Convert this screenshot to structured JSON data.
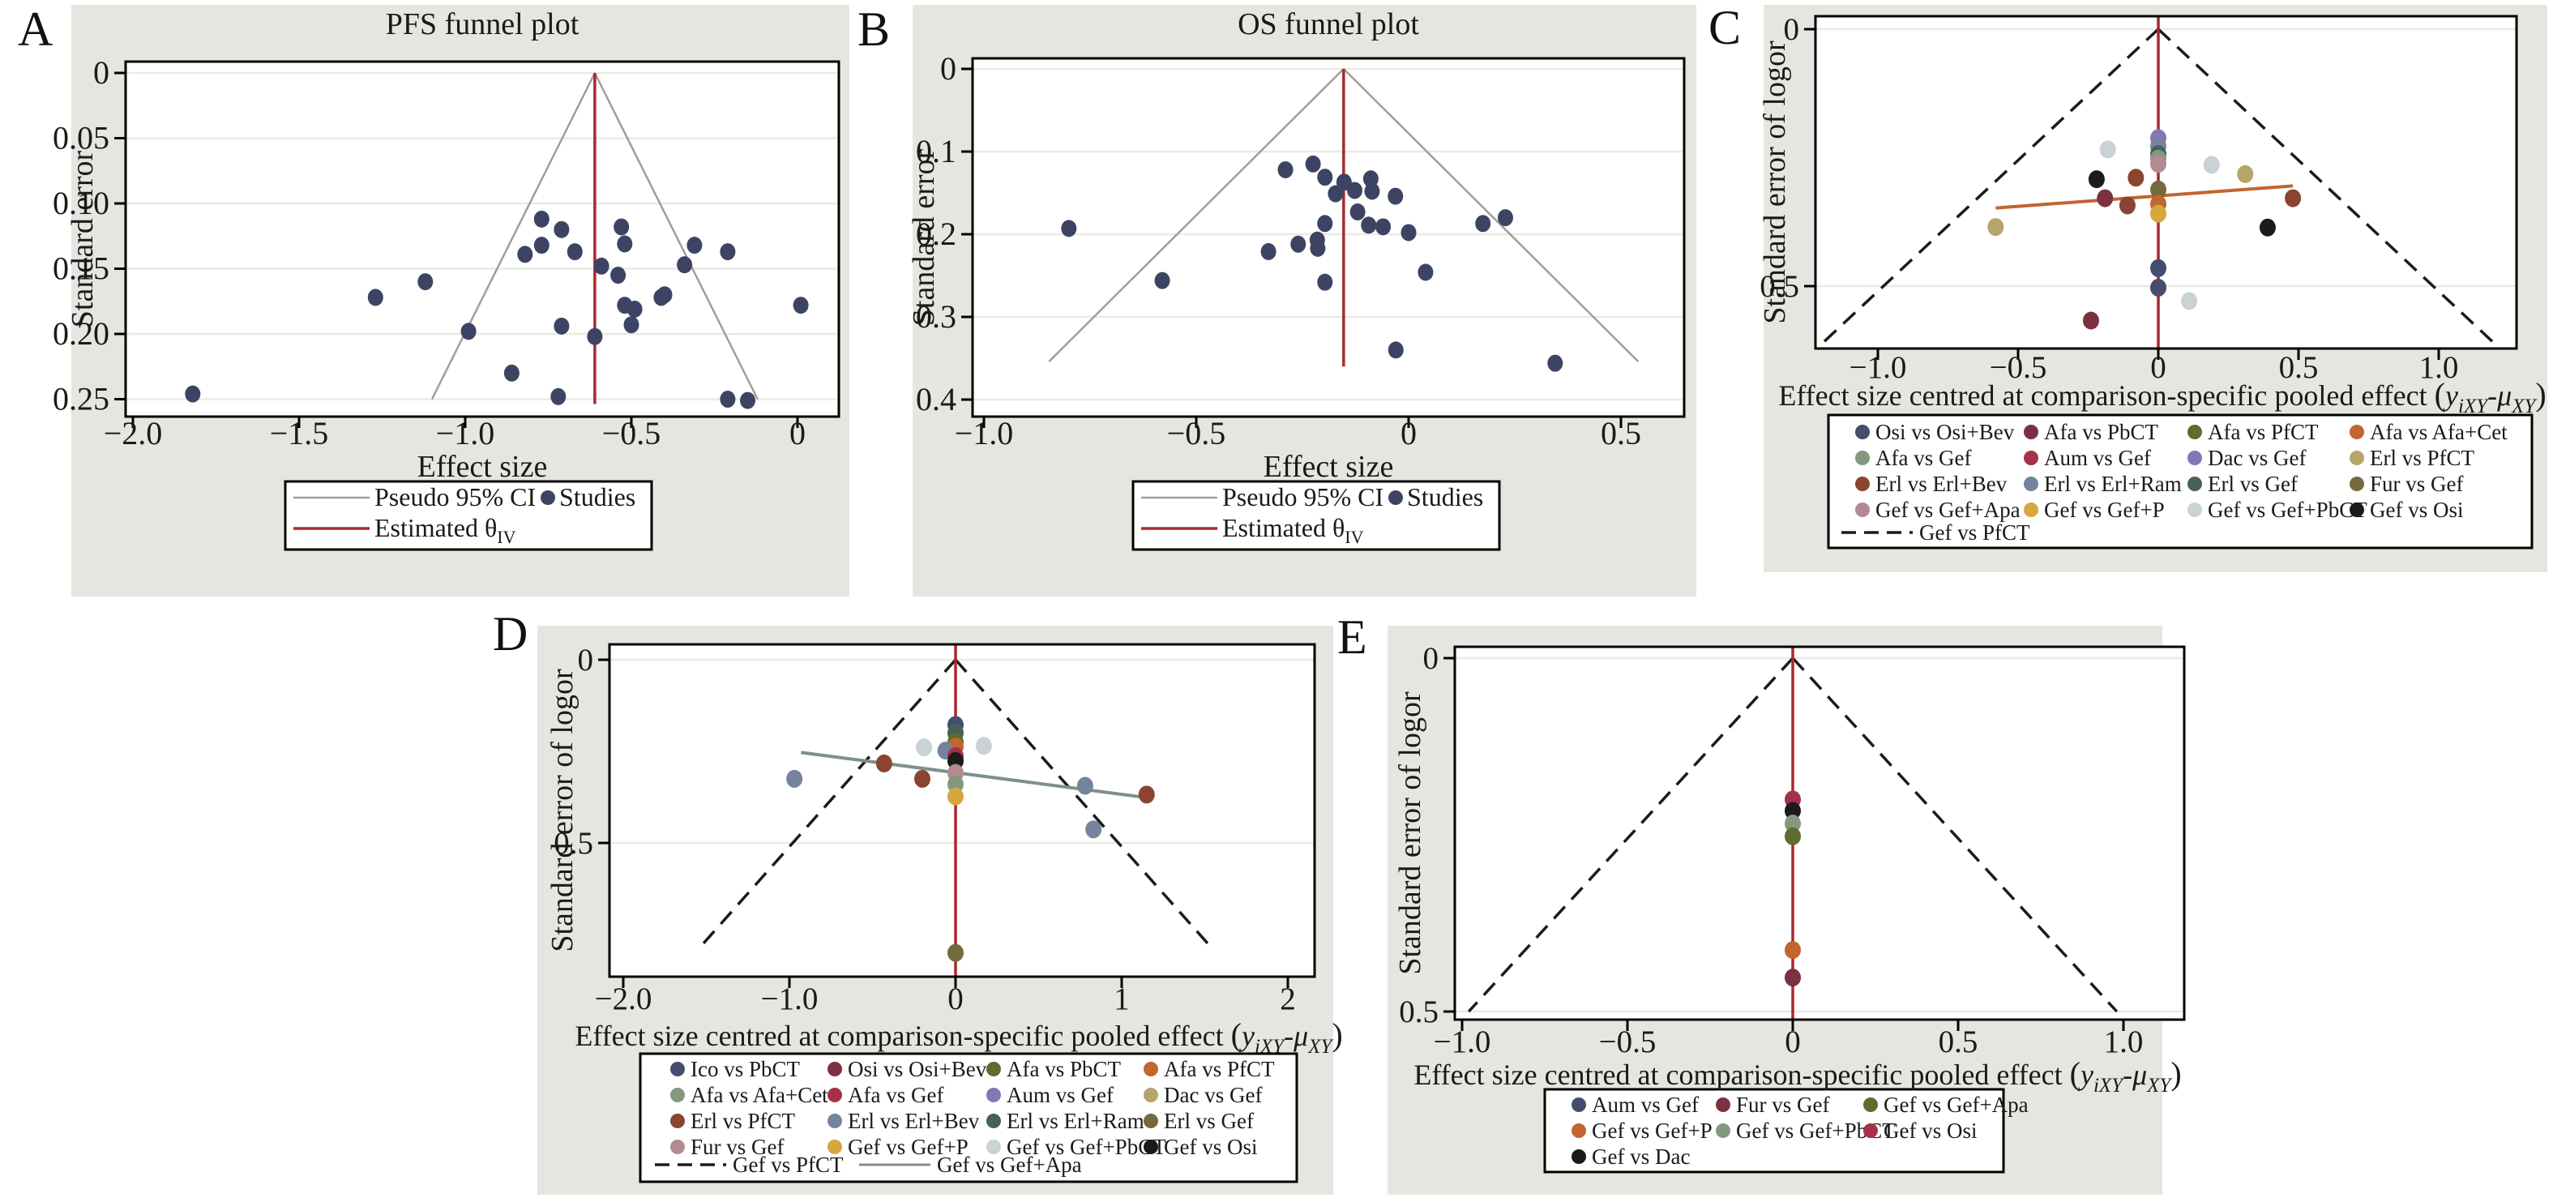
{
  "figure": {
    "background": "#ffffff",
    "panel_background": "#e4e7e0",
    "plot_background": "#ffffff",
    "gridline_color": "#e9ebe7",
    "frame_color": "#000000"
  },
  "palette": {
    "studies_navy": "#3d4463",
    "funnel_gray": "#a59b9b",
    "red": "#a8292d",
    "orange_line": "#c2652f",
    "gray_line": "#7f8f8a",
    "navy": "#454c6e",
    "maroon": "#7b3140",
    "olive": "#5f6b2f",
    "burntorange": "#c2652f",
    "sage": "#83987f",
    "crimson": "#a43148",
    "purple": "#8377b5",
    "khaki": "#b5a56b",
    "brick": "#8a4430",
    "grayblue": "#75849c",
    "darkteal": "#486158",
    "darkolive": "#756a3d",
    "mauve": "#b18a92",
    "gold": "#d5a73c",
    "lightgray": "#c9d2d4",
    "black": "#1b1b1b"
  },
  "panels": [
    {
      "label": "A"
    },
    {
      "label": "B"
    },
    {
      "label": "C"
    },
    {
      "label": "D"
    },
    {
      "label": "E"
    }
  ],
  "chart_data": [
    {
      "id": "A",
      "type": "scatter",
      "title": "PFS funnel plot",
      "xlabel": "Effect size",
      "ylabel": "Standard error",
      "x_ticks": [
        -2.0,
        -1.5,
        -1.0,
        -0.5,
        0
      ],
      "x_tick_labels": [
        "−2.0",
        "−1.5",
        "−1.0",
        "−0.5",
        "0"
      ],
      "y_ticks": [
        0,
        0.05,
        0.1,
        0.15,
        0.2,
        0.25
      ],
      "y_tick_labels": [
        "0",
        "0.05",
        "0.10",
        "0.15",
        "0.20",
        "0.25"
      ],
      "xlim": [
        -2.15,
        0.12
      ],
      "ylim": [
        0,
        0.26
      ],
      "pooled_effect": -0.61,
      "funnel": {
        "center": -0.61,
        "slope": 1.96,
        "se_end": 0.25,
        "style": "solid",
        "color_key": "funnel_gray"
      },
      "points_color_key": "studies_navy",
      "points": [
        [
          -1.82,
          0.246
        ],
        [
          -1.27,
          0.172
        ],
        [
          -1.12,
          0.16
        ],
        [
          -0.99,
          0.198
        ],
        [
          -0.86,
          0.23
        ],
        [
          -0.82,
          0.139
        ],
        [
          -0.77,
          0.112
        ],
        [
          -0.77,
          0.132
        ],
        [
          -0.72,
          0.248
        ],
        [
          -0.71,
          0.12
        ],
        [
          -0.71,
          0.194
        ],
        [
          -0.67,
          0.137
        ],
        [
          -0.61,
          0.202
        ],
        [
          -0.59,
          0.148
        ],
        [
          -0.54,
          0.155
        ],
        [
          -0.53,
          0.118
        ],
        [
          -0.52,
          0.131
        ],
        [
          -0.52,
          0.178
        ],
        [
          -0.5,
          0.193
        ],
        [
          -0.49,
          0.181
        ],
        [
          -0.41,
          0.172
        ],
        [
          -0.4,
          0.17
        ],
        [
          -0.34,
          0.147
        ],
        [
          -0.31,
          0.132
        ],
        [
          -0.21,
          0.137
        ],
        [
          -0.21,
          0.25
        ],
        [
          -0.15,
          0.251
        ],
        [
          0.01,
          0.178
        ]
      ],
      "legend_ab": {
        "ci_label": "Pseudo 95% CI",
        "studies_label": "Studies",
        "estimate_label": "Estimated θ",
        "estimate_sub": "IV"
      }
    },
    {
      "id": "B",
      "type": "scatter",
      "title": "OS funnel plot",
      "xlabel": "Effect size",
      "ylabel": "Standard error",
      "x_ticks": [
        -1.0,
        -0.5,
        0,
        0.5
      ],
      "x_tick_labels": [
        "−1.0",
        "−0.5",
        "0",
        "0.5"
      ],
      "y_ticks": [
        0,
        0.1,
        0.2,
        0.3,
        0.4
      ],
      "y_tick_labels": [
        "0",
        "0.1",
        "0.2",
        "0.3",
        "0.4"
      ],
      "xlim": [
        -1.05,
        0.58
      ],
      "ylim": [
        0,
        0.42
      ],
      "pooled_effect": -0.153,
      "funnel": {
        "center": -0.153,
        "slope": 1.96,
        "se_end": 0.354,
        "style": "solid",
        "color_key": "funnel_gray"
      },
      "points_color_key": "studies_navy",
      "points": [
        [
          -0.8,
          0.193
        ],
        [
          -0.58,
          0.256
        ],
        [
          -0.33,
          0.221
        ],
        [
          -0.29,
          0.122
        ],
        [
          -0.26,
          0.212
        ],
        [
          -0.225,
          0.115
        ],
        [
          -0.215,
          0.207
        ],
        [
          -0.214,
          0.217
        ],
        [
          -0.197,
          0.131
        ],
        [
          -0.197,
          0.187
        ],
        [
          -0.197,
          0.258
        ],
        [
          -0.172,
          0.151
        ],
        [
          -0.152,
          0.137
        ],
        [
          -0.127,
          0.147
        ],
        [
          -0.12,
          0.173
        ],
        [
          -0.089,
          0.133
        ],
        [
          -0.086,
          0.148
        ],
        [
          -0.094,
          0.189
        ],
        [
          -0.06,
          0.191
        ],
        [
          -0.031,
          0.154
        ],
        [
          0.0,
          0.198
        ],
        [
          -0.03,
          0.34
        ],
        [
          0.04,
          0.246
        ],
        [
          0.175,
          0.187
        ],
        [
          0.228,
          0.18
        ],
        [
          0.345,
          0.356
        ]
      ],
      "legend_ab": {
        "ci_label": "Pseudo 95% CI",
        "studies_label": "Studies",
        "estimate_label": "Estimated θ",
        "estimate_sub": "IV"
      }
    },
    {
      "id": "C",
      "type": "scatter",
      "title": "",
      "xlabel": "Effect size centred at comparison-specific pooled effect",
      "formula": {
        "pre": "(",
        "var1": "y",
        "sub1": "iXY",
        "op": "-",
        "var2": "μ",
        "sub2": "XY",
        "post": ")"
      },
      "ylabel": "Standard error of logor",
      "x_ticks": [
        -1.0,
        -0.5,
        0,
        0.5,
        1.0
      ],
      "x_tick_labels": [
        "−1.0",
        "−0.5",
        "0",
        "0.5",
        "1.0"
      ],
      "y_ticks": [
        0,
        0.5
      ],
      "y_tick_labels": [
        "0",
        "0.5"
      ],
      "xlim": [
        -1.22,
        1.28
      ],
      "ylim": [
        0,
        0.62
      ],
      "pooled_effect": 0,
      "funnel": {
        "center": 0,
        "slope": 1.96,
        "se_end": 0.615,
        "style": "dashed",
        "color_key": "black"
      },
      "reg_line": {
        "x1": -0.58,
        "se1": 0.348,
        "x2": 0.48,
        "se2": 0.305,
        "color_key": "orange_line"
      },
      "points": [
        [
          0,
          0.212,
          "purple"
        ],
        [
          0,
          0.228,
          "grayblue"
        ],
        [
          -0.18,
          0.234,
          "lightgray"
        ],
        [
          0,
          0.243,
          "darkteal"
        ],
        [
          0,
          0.252,
          "sage"
        ],
        [
          0,
          0.262,
          "mauve"
        ],
        [
          0.19,
          0.264,
          "lightgray"
        ],
        [
          0.31,
          0.282,
          "khaki"
        ],
        [
          -0.08,
          0.289,
          "brick"
        ],
        [
          -0.22,
          0.292,
          "black"
        ],
        [
          0,
          0.312,
          "darkolive"
        ],
        [
          -0.19,
          0.329,
          "maroon"
        ],
        [
          0,
          0.34,
          "burntorange"
        ],
        [
          -0.11,
          0.343,
          "brick"
        ],
        [
          0.48,
          0.329,
          "brick"
        ],
        [
          0,
          0.359,
          "gold"
        ],
        [
          -0.58,
          0.385,
          "khaki"
        ],
        [
          0.39,
          0.386,
          "black"
        ],
        [
          0,
          0.465,
          "navy"
        ],
        [
          0,
          0.503,
          "navy"
        ],
        [
          0.11,
          0.529,
          "lightgray"
        ],
        [
          -0.24,
          0.567,
          "maroon"
        ]
      ],
      "legend_grid": {
        "columns": 4,
        "items": [
          {
            "ck": "navy",
            "label": "Osi vs Osi+Bev"
          },
          {
            "ck": "maroon",
            "label": "Afa vs PbCT"
          },
          {
            "ck": "olive",
            "label": "Afa vs PfCT"
          },
          {
            "ck": "burntorange",
            "label": "Afa vs Afa+Cet"
          },
          {
            "ck": "sage",
            "label": "Afa vs Gef"
          },
          {
            "ck": "crimson",
            "label": "Aum vs Gef"
          },
          {
            "ck": "purple",
            "label": "Dac vs Gef"
          },
          {
            "ck": "khaki",
            "label": "Erl vs PfCT"
          },
          {
            "ck": "brick",
            "label": "Erl vs Erl+Bev"
          },
          {
            "ck": "grayblue",
            "label": "Erl vs Erl+Ram"
          },
          {
            "ck": "darkteal",
            "label": "Erl vs Gef"
          },
          {
            "ck": "darkolive",
            "label": "Fur vs Gef"
          },
          {
            "ck": "mauve",
            "label": "Gef vs Gef+Apa"
          },
          {
            "ck": "gold",
            "label": "Gef vs Gef+P"
          },
          {
            "ck": "lightgray",
            "label": "Gef vs Gef+PbCT"
          },
          {
            "ck": "black",
            "label": "Gef vs Osi"
          }
        ],
        "extra": [
          {
            "sw": "dash",
            "ck": "black",
            "label": "Gef vs PfCT"
          }
        ]
      }
    },
    {
      "id": "D",
      "type": "scatter",
      "title": "",
      "xlabel": "Effect size centred at comparison-specific pooled effect",
      "formula": {
        "pre": "(",
        "var1": "y",
        "sub1": "iXY",
        "op": "-",
        "var2": "μ",
        "sub2": "XY",
        "post": ")"
      },
      "ylabel": "Standard error of logor",
      "x_ticks": [
        -2.0,
        -1.0,
        0,
        1,
        2
      ],
      "x_tick_labels": [
        "−2.0",
        "−1.0",
        "0",
        "1",
        "2"
      ],
      "y_ticks": [
        0,
        0.5
      ],
      "y_tick_labels": [
        "0",
        "0.5"
      ],
      "xlim": [
        -2.1,
        2.16
      ],
      "ylim": [
        0,
        0.865
      ],
      "pooled_effect": 0,
      "funnel": {
        "center": 0,
        "slope": 1.96,
        "se_end": 0.78,
        "style": "dashed",
        "color_key": "black"
      },
      "reg_line": {
        "x1": -0.93,
        "se1": 0.253,
        "x2": 1.18,
        "se2": 0.378,
        "color_key": "gray_line"
      },
      "points": [
        [
          0,
          0.178,
          "navy"
        ],
        [
          0,
          0.2,
          "darkteal"
        ],
        [
          0,
          0.225,
          "olive"
        ],
        [
          0,
          0.237,
          "burntorange"
        ],
        [
          -0.19,
          0.239,
          "lightgray"
        ],
        [
          -0.06,
          0.248,
          "grayblue"
        ],
        [
          0.17,
          0.235,
          "lightgray"
        ],
        [
          0,
          0.263,
          "crimson"
        ],
        [
          0,
          0.276,
          "black"
        ],
        [
          -0.43,
          0.283,
          "brick"
        ],
        [
          0,
          0.309,
          "mauve"
        ],
        [
          -0.97,
          0.325,
          "grayblue"
        ],
        [
          -0.2,
          0.325,
          "brick"
        ],
        [
          0,
          0.34,
          "sage"
        ],
        [
          0,
          0.373,
          "gold"
        ],
        [
          0.78,
          0.344,
          "grayblue"
        ],
        [
          1.15,
          0.368,
          "brick"
        ],
        [
          0.83,
          0.463,
          "grayblue"
        ],
        [
          0,
          0.8,
          "darkolive"
        ]
      ],
      "legend_grid": {
        "columns": 4,
        "items": [
          {
            "ck": "navy",
            "label": "Ico vs PbCT"
          },
          {
            "ck": "maroon",
            "label": "Osi vs Osi+Bev"
          },
          {
            "ck": "olive",
            "label": "Afa vs PbCT"
          },
          {
            "ck": "burntorange",
            "label": "Afa vs PfCT"
          },
          {
            "ck": "sage",
            "label": "Afa vs Afa+Cet"
          },
          {
            "ck": "crimson",
            "label": "Afa vs Gef"
          },
          {
            "ck": "purple",
            "label": "Aum vs Gef"
          },
          {
            "ck": "khaki",
            "label": "Dac vs Gef"
          },
          {
            "ck": "brick",
            "label": "Erl vs PfCT"
          },
          {
            "ck": "grayblue",
            "label": "Erl vs Erl+Bev"
          },
          {
            "ck": "darkteal",
            "label": "Erl vs Erl+Ram"
          },
          {
            "ck": "darkolive",
            "label": "Erl vs Gef"
          },
          {
            "ck": "mauve",
            "label": "Fur vs Gef"
          },
          {
            "ck": "gold",
            "label": "Gef vs Gef+P"
          },
          {
            "ck": "lightgray",
            "label": "Gef vs Gef+PbCT"
          },
          {
            "ck": "black",
            "label": "Gef vs Osi"
          }
        ],
        "extra": [
          {
            "sw": "dash",
            "ck": "black",
            "label": "Gef vs PfCT"
          },
          {
            "sw": "line",
            "ck": "gray_line",
            "label": "Gef vs Gef+Apa"
          }
        ]
      }
    },
    {
      "id": "E",
      "type": "scatter",
      "title": "",
      "xlabel": "Effect size centred at comparison-specific pooled effect",
      "formula": {
        "pre": "(",
        "var1": "y",
        "sub1": "iXY",
        "op": "-",
        "var2": "μ",
        "sub2": "XY",
        "post": ")"
      },
      "ylabel": "Standard error of logor",
      "x_ticks": [
        -1.0,
        -0.5,
        0,
        0.5,
        1.0
      ],
      "x_tick_labels": [
        "−1.0",
        "−0.5",
        "0",
        "0.5",
        "1.0"
      ],
      "y_ticks": [
        0,
        0.5
      ],
      "y_tick_labels": [
        "0",
        "0.5"
      ],
      "xlim": [
        -1.05,
        1.18
      ],
      "ylim": [
        0,
        0.51
      ],
      "pooled_effect": 0,
      "funnel": {
        "center": 0,
        "slope": 1.96,
        "se_end": 0.5,
        "style": "dashed",
        "color_key": "black"
      },
      "points": [
        [
          0,
          0.2,
          "crimson"
        ],
        [
          0,
          0.216,
          "black"
        ],
        [
          0,
          0.234,
          "sage"
        ],
        [
          0,
          0.252,
          "olive"
        ],
        [
          0,
          0.413,
          "burntorange"
        ],
        [
          0,
          0.452,
          "maroon"
        ]
      ],
      "legend_grid": {
        "columns": 3,
        "items": [
          {
            "ck": "navy",
            "label": "Aum vs Gef"
          },
          {
            "ck": "maroon",
            "label": "Fur vs Gef"
          },
          {
            "ck": "olive",
            "label": "Gef vs Gef+Apa"
          },
          {
            "ck": "burntorange",
            "label": "Gef vs Gef+P"
          },
          {
            "ck": "sage",
            "label": "Gef vs Gef+PbCT"
          },
          {
            "ck": "crimson",
            "label": "Gef vs Osi"
          },
          {
            "ck": "black",
            "label": "Gef vs Dac"
          }
        ],
        "extra": []
      }
    }
  ]
}
